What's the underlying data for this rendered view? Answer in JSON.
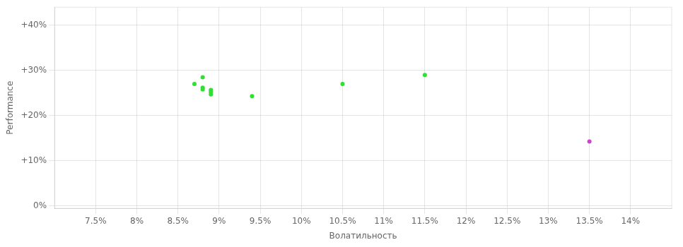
{
  "chart_data": {
    "type": "scatter",
    "xlabel": "Волатильность",
    "ylabel": "Performance",
    "xlim": [
      0.07,
      0.145
    ],
    "ylim": [
      -0.005,
      0.44
    ],
    "xticks": [
      {
        "value": 0.075,
        "label": "7.5%"
      },
      {
        "value": 0.08,
        "label": "8%"
      },
      {
        "value": 0.085,
        "label": "8.5%"
      },
      {
        "value": 0.09,
        "label": "9%"
      },
      {
        "value": 0.095,
        "label": "9.5%"
      },
      {
        "value": 0.1,
        "label": "10%"
      },
      {
        "value": 0.105,
        "label": "10.5%"
      },
      {
        "value": 0.11,
        "label": "11%"
      },
      {
        "value": 0.115,
        "label": "11.5%"
      },
      {
        "value": 0.12,
        "label": "12%"
      },
      {
        "value": 0.125,
        "label": "12.5%"
      },
      {
        "value": 0.13,
        "label": "13%"
      },
      {
        "value": 0.135,
        "label": "13.5%"
      },
      {
        "value": 0.14,
        "label": "14%"
      }
    ],
    "yticks": [
      {
        "value": 0.0,
        "label": "0%"
      },
      {
        "value": 0.1,
        "label": "+10%"
      },
      {
        "value": 0.2,
        "label": "+20%"
      },
      {
        "value": 0.3,
        "label": "+30%"
      },
      {
        "value": 0.4,
        "label": "+40%"
      }
    ],
    "grid": true,
    "series": [
      {
        "color": "#33dd33",
        "x": [
          0.088,
          0.087,
          0.088,
          0.088,
          0.089,
          0.089,
          0.089,
          0.094,
          0.105,
          0.115
        ],
        "values": [
          0.285,
          0.27,
          0.262,
          0.258,
          0.257,
          0.252,
          0.247,
          0.243,
          0.27,
          0.29
        ]
      },
      {
        "color": "#cc44cc",
        "x": [
          0.135
        ],
        "values": [
          0.143
        ]
      }
    ]
  }
}
